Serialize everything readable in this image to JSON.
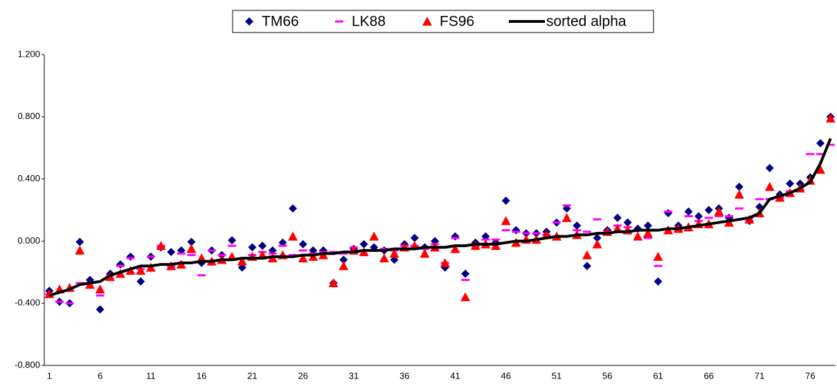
{
  "chart_data": {
    "type": "line",
    "categories": [
      "1",
      null,
      null,
      null,
      null,
      "6",
      null,
      null,
      null,
      null,
      "11",
      null,
      null,
      null,
      null,
      "16",
      null,
      null,
      null,
      null,
      "21",
      null,
      null,
      null,
      null,
      "26",
      null,
      null,
      null,
      null,
      "31",
      null,
      null,
      null,
      null,
      "36",
      null,
      null,
      null,
      null,
      "41",
      null,
      null,
      null,
      null,
      "46",
      null,
      null,
      null,
      null,
      "51",
      null,
      null,
      null,
      null,
      "56",
      null,
      null,
      null,
      null,
      "61",
      null,
      null,
      null,
      null,
      "66",
      null,
      null,
      null,
      null,
      "71",
      null,
      null,
      null,
      null,
      "76",
      null,
      null
    ],
    "series": [
      {
        "name": "TM66",
        "color": "#000080",
        "marker": "diamond",
        "values": [
          -0.32,
          -0.39,
          -0.4,
          -0.005,
          -0.25,
          -0.44,
          -0.21,
          -0.15,
          -0.1,
          -0.26,
          -0.1,
          -0.04,
          -0.07,
          -0.06,
          -0.005,
          -0.14,
          -0.06,
          -0.09,
          0.005,
          -0.17,
          -0.04,
          -0.03,
          -0.06,
          -0.01,
          0.21,
          -0.02,
          -0.06,
          -0.06,
          -0.27,
          -0.12,
          -0.05,
          -0.02,
          -0.04,
          -0.06,
          -0.12,
          -0.02,
          0.02,
          -0.04,
          0.0,
          -0.17,
          0.03,
          -0.21,
          -0.01,
          0.03,
          -0.01,
          0.26,
          0.07,
          0.05,
          0.05,
          0.06,
          0.12,
          0.21,
          0.1,
          -0.16,
          0.02,
          0.07,
          0.15,
          0.12,
          0.08,
          0.1,
          -0.26,
          0.18,
          0.1,
          0.19,
          0.16,
          0.2,
          0.21,
          0.15,
          0.35,
          0.13,
          0.22,
          0.47,
          0.3,
          0.37,
          0.37,
          0.41,
          0.63,
          0.8
        ]
      },
      {
        "name": "LK88",
        "color": "#ff00ff",
        "marker": "dash",
        "values": [
          -0.34,
          -0.39,
          -0.4,
          -0.27,
          -0.27,
          -0.35,
          -0.22,
          -0.16,
          -0.11,
          -0.18,
          -0.1,
          -0.03,
          -0.16,
          -0.08,
          -0.09,
          -0.22,
          -0.06,
          -0.09,
          -0.03,
          -0.15,
          -0.09,
          -0.07,
          -0.08,
          -0.03,
          -0.09,
          -0.06,
          -0.08,
          -0.07,
          -0.07,
          -0.08,
          -0.04,
          -0.06,
          -0.06,
          -0.05,
          -0.06,
          -0.03,
          -0.03,
          -0.05,
          -0.02,
          -0.14,
          0.02,
          -0.25,
          -0.03,
          0.01,
          0.01,
          0.07,
          0.06,
          0.05,
          0.05,
          0.04,
          0.12,
          0.23,
          0.07,
          0.06,
          0.14,
          0.06,
          0.1,
          0.09,
          0.07,
          0.02,
          -0.16,
          0.19,
          0.07,
          0.16,
          0.13,
          0.15,
          0.16,
          0.16,
          0.21,
          0.15,
          0.27,
          0.27,
          0.28,
          0.32,
          0.33,
          0.56,
          0.56,
          0.62
        ]
      },
      {
        "name": "FS96",
        "color": "#ff0000",
        "marker": "triangle",
        "values": [
          -0.34,
          -0.31,
          -0.3,
          -0.06,
          -0.28,
          -0.31,
          -0.23,
          -0.21,
          -0.19,
          -0.19,
          -0.17,
          -0.03,
          -0.16,
          -0.15,
          -0.05,
          -0.11,
          -0.13,
          -0.12,
          -0.1,
          -0.13,
          -0.1,
          -0.09,
          -0.11,
          -0.09,
          0.03,
          -0.11,
          -0.1,
          -0.09,
          -0.27,
          -0.16,
          -0.06,
          -0.07,
          0.03,
          -0.11,
          -0.08,
          -0.04,
          -0.03,
          -0.08,
          -0.04,
          -0.14,
          -0.05,
          -0.36,
          -0.03,
          -0.02,
          -0.03,
          0.13,
          -0.01,
          0.01,
          0.01,
          0.04,
          0.03,
          0.15,
          0.04,
          -0.09,
          -0.02,
          0.06,
          0.08,
          0.07,
          0.03,
          0.05,
          -0.1,
          0.07,
          0.08,
          0.09,
          0.11,
          0.11,
          0.19,
          0.12,
          0.3,
          0.14,
          0.18,
          0.35,
          0.28,
          0.31,
          0.34,
          0.39,
          0.46,
          0.79
        ]
      },
      {
        "name": "sorted alpha",
        "color": "#000000",
        "marker": "line",
        "values": [
          -0.35,
          -0.33,
          -0.31,
          -0.28,
          -0.27,
          -0.26,
          -0.22,
          -0.2,
          -0.18,
          -0.16,
          -0.16,
          -0.15,
          -0.15,
          -0.14,
          -0.14,
          -0.13,
          -0.13,
          -0.12,
          -0.12,
          -0.11,
          -0.11,
          -0.11,
          -0.1,
          -0.1,
          -0.1,
          -0.09,
          -0.09,
          -0.08,
          -0.08,
          -0.07,
          -0.07,
          -0.06,
          -0.06,
          -0.06,
          -0.05,
          -0.05,
          -0.05,
          -0.04,
          -0.04,
          -0.04,
          -0.03,
          -0.03,
          -0.02,
          -0.02,
          -0.02,
          -0.01,
          0.0,
          0.0,
          0.01,
          0.02,
          0.03,
          0.03,
          0.04,
          0.04,
          0.05,
          0.05,
          0.06,
          0.06,
          0.07,
          0.07,
          0.07,
          0.08,
          0.08,
          0.09,
          0.1,
          0.11,
          0.12,
          0.13,
          0.14,
          0.15,
          0.18,
          0.27,
          0.29,
          0.31,
          0.34,
          0.38,
          0.5,
          0.66
        ]
      }
    ],
    "ylim": [
      -0.8,
      1.2
    ],
    "yticks": [
      {
        "value": -0.8,
        "label": "-0.800"
      },
      {
        "value": -0.4,
        "label": "-0.400"
      },
      {
        "value": 0,
        "label": "0.000"
      },
      {
        "value": 0.4,
        "label": "0.400"
      },
      {
        "value": 0.8,
        "label": "0.800"
      },
      {
        "value": 1.2,
        "label": "1.200"
      }
    ],
    "grid": false,
    "legend": "top"
  }
}
